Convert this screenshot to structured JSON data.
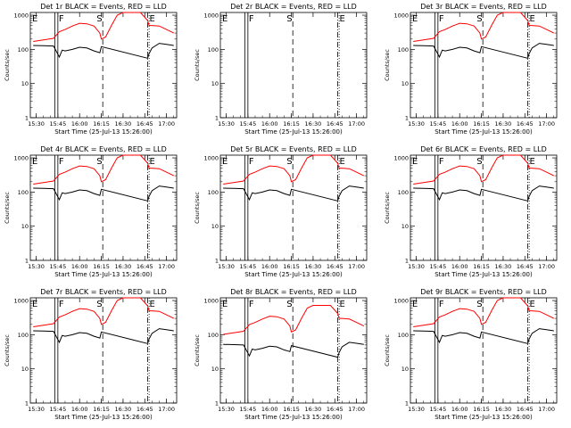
{
  "panels": [
    {
      "title": "Det 1r BLACK = Events, RED = LLD",
      "variant": "a"
    },
    {
      "title": "Det 2r BLACK = Events, RED = LLD",
      "variant": "empty"
    },
    {
      "title": "Det 3r BLACK = Events, RED = LLD",
      "variant": "a"
    },
    {
      "title": "Det 4r BLACK = Events, RED = LLD",
      "variant": "a"
    },
    {
      "title": "Det 5r BLACK = Events, RED = LLD",
      "variant": "a"
    },
    {
      "title": "Det 6r BLACK = Events, RED = LLD",
      "variant": "a"
    },
    {
      "title": "Det 7r BLACK = Events, RED = LLD",
      "variant": "a"
    },
    {
      "title": "Det 8r BLACK = Events, RED = LLD",
      "variant": "b"
    },
    {
      "title": "Det 9r BLACK = Events, RED = LLD",
      "variant": "a"
    }
  ],
  "axes": {
    "xlabel": "Start Time (25-Jul-13 15:26:00)",
    "ylabel": "Counts/sec",
    "xticks": [
      "15:30",
      "15:45",
      "16:00",
      "16:15",
      "16:30",
      "16:45",
      "17:00"
    ],
    "yticks": [
      "1",
      "10",
      "100",
      "1000"
    ]
  },
  "markers": {
    "e": "E",
    "f": "F",
    "s": "S"
  },
  "colors": {
    "events": "#000000",
    "lld": "#ff0000",
    "axis": "#000000"
  },
  "chart_data": {
    "type": "line",
    "x_unit": "time (HH:MM)",
    "y_scale": "log",
    "ylim": [
      1,
      1200
    ],
    "xlim": [
      "15:26",
      "17:07"
    ],
    "vertical_lines": [
      {
        "label": "E",
        "x": "15:43",
        "style": "solid"
      },
      {
        "label": "F",
        "x": "15:45",
        "style": "solid"
      },
      {
        "label": "S",
        "x": "16:16",
        "style": "dashed"
      },
      {
        "label": "E",
        "x": "16:47",
        "style": "dash-dot"
      },
      {
        "label": "F",
        "x": "16:48",
        "style": "dotted"
      }
    ],
    "series": [
      {
        "name": "LLD",
        "color": "#ff0000",
        "x": [
          "15:28",
          "15:35",
          "15:42",
          "15:46",
          "15:50",
          "15:55",
          "16:00",
          "16:05",
          "16:10",
          "16:14",
          "16:15",
          "16:18",
          "16:22",
          "16:26",
          "16:30",
          "16:35",
          "16:42",
          "16:47",
          "16:48",
          "16:50",
          "16:55",
          "17:00",
          "17:05"
        ],
        "y": [
          170,
          190,
          210,
          330,
          380,
          480,
          580,
          560,
          480,
          300,
          200,
          230,
          500,
          1000,
          1200,
          1200,
          1200,
          700,
          500,
          500,
          480,
          380,
          300
        ]
      },
      {
        "name": "Events",
        "color": "#000000",
        "x": [
          "15:28",
          "15:35",
          "15:42",
          "15:46",
          "15:48",
          "15:50",
          "15:55",
          "16:00",
          "16:05",
          "16:10",
          "16:14",
          "16:15",
          "16:47",
          "16:48",
          "16:50",
          "16:55",
          "17:00",
          "17:05"
        ],
        "y": [
          130,
          128,
          125,
          60,
          95,
          90,
          100,
          115,
          110,
          90,
          80,
          120,
          55,
          75,
          110,
          150,
          140,
          130
        ]
      }
    ]
  }
}
